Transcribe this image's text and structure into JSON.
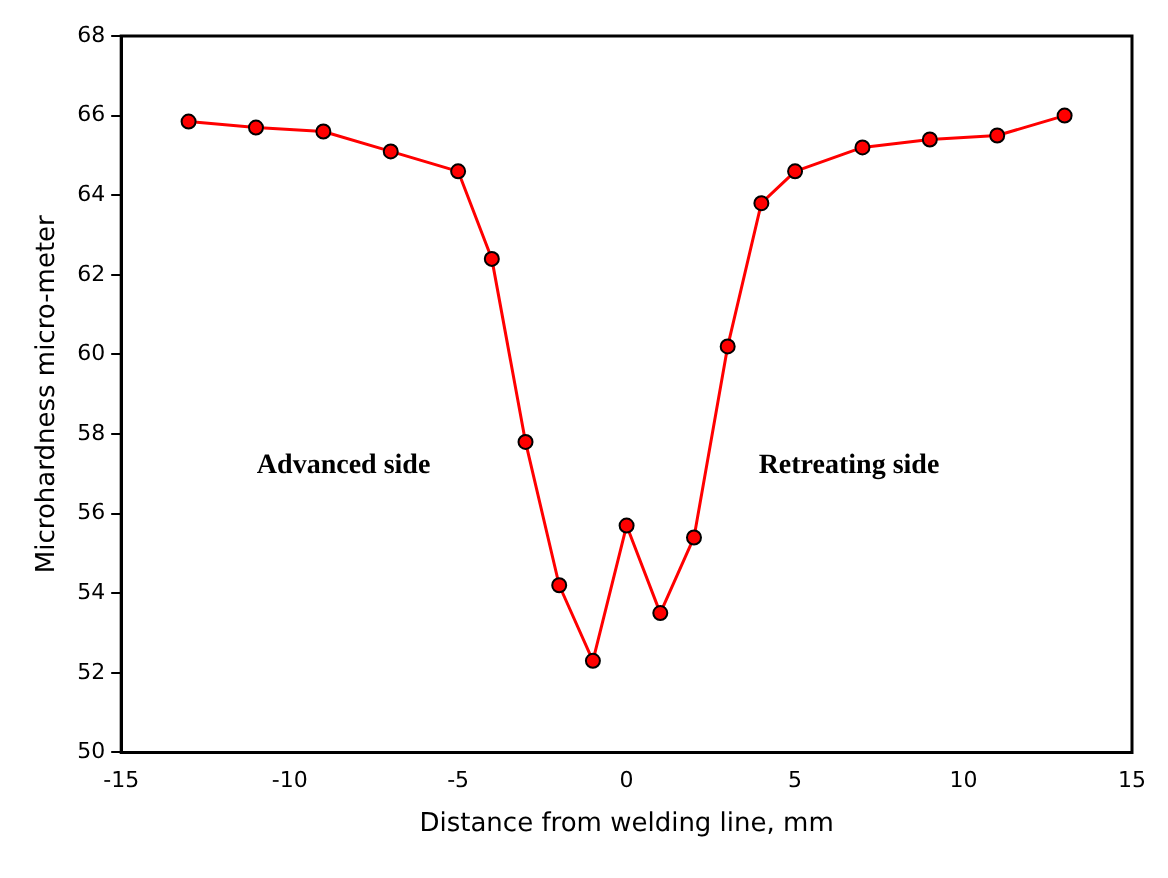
{
  "chart_data": {
    "type": "line",
    "xlabel": "Distance from welding line, mm",
    "ylabel": "Microhardness micro-meter",
    "x": [
      -13,
      -11,
      -9,
      -7,
      -5,
      -4,
      -3,
      -2,
      -1,
      0,
      1,
      2,
      3,
      4,
      5,
      7,
      9,
      11,
      13
    ],
    "series": [
      {
        "color": "#ff0000",
        "values": [
          65.85,
          65.7,
          65.6,
          65.1,
          64.6,
          62.4,
          57.8,
          54.2,
          52.3,
          55.7,
          53.5,
          55.4,
          60.2,
          63.8,
          64.6,
          65.2,
          65.4,
          65.5,
          66.0
        ]
      }
    ],
    "xlim": [
      -15,
      15
    ],
    "xticks": [
      -15,
      -10,
      -5,
      0,
      5,
      10,
      15
    ],
    "ylim": [
      50,
      68
    ],
    "yticks": [
      50,
      52,
      54,
      56,
      58,
      60,
      62,
      64,
      66,
      68
    ],
    "grid": false,
    "legend": false,
    "marker": "circle",
    "line_style": "solid",
    "annotations": [
      "Advanced side",
      "Retreating side"
    ]
  }
}
